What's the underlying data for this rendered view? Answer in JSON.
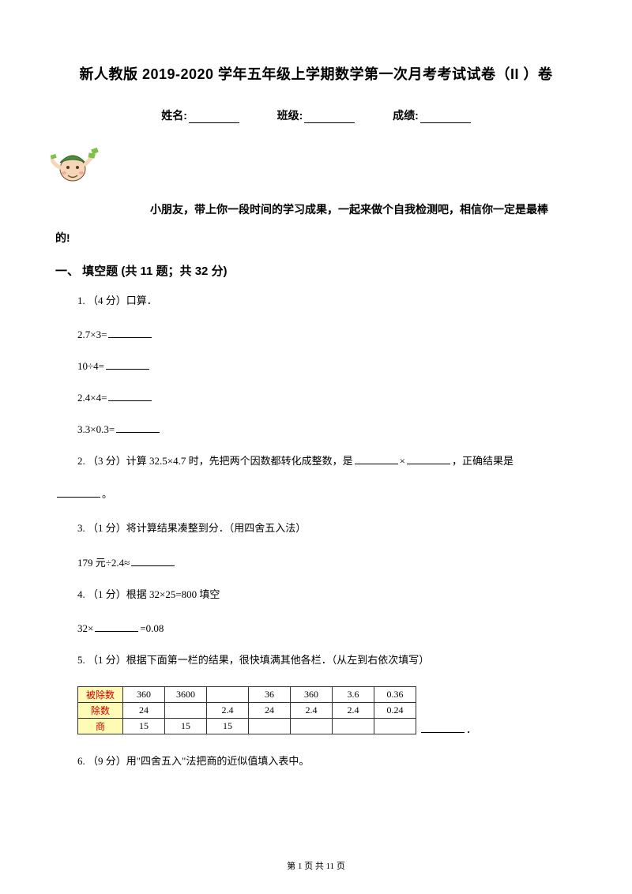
{
  "title": "新人教版 2019-2020 学年五年级上学期数学第一次月考考试试卷（II ）卷",
  "info": {
    "name_label": "姓名:",
    "class_label": "班级:",
    "score_label": "成绩:"
  },
  "intro_line1": "小朋友，带上你一段时间的学习成果，一起来做个自我检测吧，相信你一定是最棒",
  "intro_line2": "的!",
  "section1": "一、 填空题 (共 11 题；共 32 分)",
  "q1": {
    "stem": "1.  （4 分）口算．",
    "a": "2.7×3=",
    "b": "10÷4=",
    "c": "2.4×4=",
    "d": "3.3×0.3="
  },
  "q2": {
    "pre": "2.   （3 分）计算 32.5×4.7 时，先把两个因数都转化成整数，是",
    "mid": "×",
    "post": "，正确结果是",
    "tail": "。"
  },
  "q3": {
    "stem": "3.  （1 分）将计算结果凑整到分．（用四舍五入法）",
    "expr": "179 元÷2.4≈"
  },
  "q4": {
    "stem": "4.  （1 分）根据 32×25=800 填空",
    "expr_pre": "32×",
    "expr_post": "=0.08"
  },
  "q5": {
    "stem": "5.  （1 分）根据下面第一栏的结果，很快填满其他各栏．（从左到右依次填写）",
    "table": {
      "header_bg": "#fffbb5",
      "header_color": "#cc0000",
      "border_color": "#333333",
      "rows": [
        {
          "label": "被除数",
          "cells": [
            "360",
            "3600",
            "",
            "36",
            "360",
            "3.6",
            "0.36"
          ]
        },
        {
          "label": "除数",
          "cells": [
            "24",
            "",
            "2.4",
            "24",
            "2.4",
            "2.4",
            "0.24"
          ]
        },
        {
          "label": "商",
          "cells": [
            "15",
            "15",
            "15",
            "",
            "",
            "",
            ""
          ]
        }
      ]
    },
    "trail": "．"
  },
  "q6": {
    "stem": "6.  （9 分）用\"四舍五入\"法把商的近似值填入表中。"
  },
  "footer": "第 1 页 共 11 页",
  "cartoon_svg_colors": {
    "skin": "#f6d6b8",
    "hat": "#4e8c3a",
    "outline": "#6b4a2a",
    "money": "#7cc24a"
  }
}
